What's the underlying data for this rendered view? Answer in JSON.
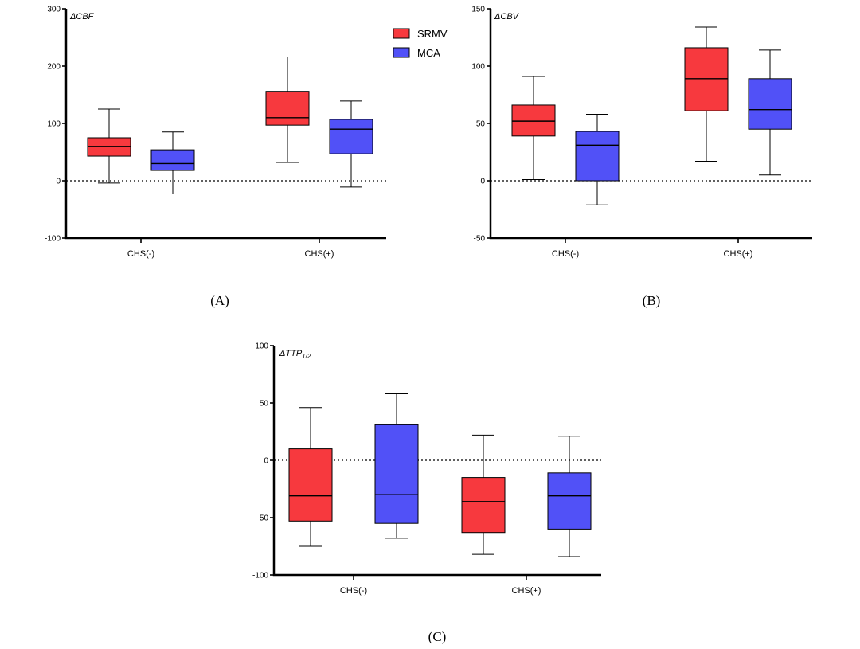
{
  "colors": {
    "srmv": "#f7393e",
    "mca": "#5151f7"
  },
  "legend": {
    "placement": "top-right",
    "entries": [
      {
        "label": "SRMV",
        "series": "srmv"
      },
      {
        "label": "MCA",
        "series": "mca"
      }
    ]
  },
  "chart_data": [
    {
      "type": "boxplot",
      "panel": "(A)",
      "ylabel": "ΔCBF",
      "ylabel_sub": "",
      "ylim": [
        -100,
        300
      ],
      "yticks": [
        -100,
        0,
        100,
        200,
        300
      ],
      "categories": [
        "CHS(-)",
        "CHS(+)"
      ],
      "reference_line": 0,
      "series": [
        {
          "name": "SRMV",
          "key": "srmv",
          "boxes": [
            {
              "min": -4,
              "q1": 43,
              "median": 60,
              "q3": 75,
              "max": 125
            },
            {
              "min": 32,
              "q1": 97,
              "median": 110,
              "q3": 156,
              "max": 216
            }
          ]
        },
        {
          "name": "MCA",
          "key": "mca",
          "boxes": [
            {
              "min": -23,
              "q1": 18,
              "median": 30,
              "q3": 54,
              "max": 85
            },
            {
              "min": -11,
              "q1": 47,
              "median": 90,
              "q3": 107,
              "max": 139
            }
          ]
        }
      ]
    },
    {
      "type": "boxplot",
      "panel": "(B)",
      "ylabel": "ΔCBV",
      "ylabel_sub": "",
      "ylim": [
        -50,
        150
      ],
      "yticks": [
        -50,
        0,
        50,
        100,
        150
      ],
      "categories": [
        "CHS(-)",
        "CHS(+)"
      ],
      "reference_line": 0,
      "series": [
        {
          "name": "SRMV",
          "key": "srmv",
          "boxes": [
            {
              "min": 1,
              "q1": 39,
              "median": 52,
              "q3": 66,
              "max": 91
            },
            {
              "min": 17,
              "q1": 61,
              "median": 89,
              "q3": 116,
              "max": 134
            }
          ]
        },
        {
          "name": "MCA",
          "key": "mca",
          "boxes": [
            {
              "min": -21,
              "q1": 0,
              "median": 31,
              "q3": 43,
              "max": 58
            },
            {
              "min": 5,
              "q1": 45,
              "median": 62,
              "q3": 89,
              "max": 114
            }
          ]
        }
      ]
    },
    {
      "type": "boxplot",
      "panel": "(C)",
      "ylabel": "ΔTTP",
      "ylabel_sub": "1/2",
      "ylim": [
        -100,
        100
      ],
      "yticks": [
        -100,
        -50,
        0,
        50,
        100
      ],
      "categories": [
        "CHS(-)",
        "CHS(+)"
      ],
      "reference_line": 0,
      "series": [
        {
          "name": "SRMV",
          "key": "srmv",
          "boxes": [
            {
              "min": -75,
              "q1": -53,
              "median": -31,
              "q3": 10,
              "max": 46
            },
            {
              "min": -82,
              "q1": -63,
              "median": -36,
              "q3": -15,
              "max": 22
            }
          ]
        },
        {
          "name": "MCA",
          "key": "mca",
          "boxes": [
            {
              "min": -68,
              "q1": -55,
              "median": -30,
              "q3": 31,
              "max": 58
            },
            {
              "min": -84,
              "q1": -60,
              "median": -31,
              "q3": -11,
              "max": 21
            }
          ]
        }
      ]
    }
  ]
}
